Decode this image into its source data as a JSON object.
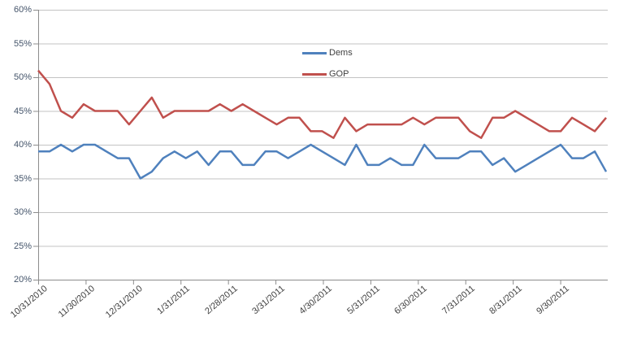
{
  "chart_data": {
    "type": "line",
    "title": "",
    "x_tick_labels": [
      "10/31/2010",
      "11/30/2010",
      "12/31/2010",
      "1/31/2011",
      "2/28/2011",
      "3/31/2011",
      "4/30/2011",
      "5/31/2011",
      "6/30/2011",
      "7/31/2011",
      "8/31/2011",
      "9/30/2011"
    ],
    "y_tick_labels": [
      "20%",
      "25%",
      "30%",
      "35%",
      "40%",
      "45%",
      "50%",
      "55%",
      "60%"
    ],
    "ylim": [
      20,
      60
    ],
    "y_step": 5,
    "grid": true,
    "legend_position": "inside-top-center",
    "series": [
      {
        "name": "Dems",
        "color": "#4F81BD",
        "values": [
          39,
          39,
          40,
          39,
          40,
          40,
          39,
          38,
          38,
          35,
          36,
          38,
          39,
          38,
          39,
          37,
          39,
          39,
          37,
          37,
          39,
          39,
          38,
          39,
          40,
          39,
          38,
          37,
          40,
          37,
          37,
          38,
          37,
          37,
          40,
          38,
          38,
          38,
          39,
          39,
          37,
          38,
          36,
          37,
          38,
          39,
          40,
          38,
          38,
          39,
          36
        ]
      },
      {
        "name": "GOP",
        "color": "#C0504D",
        "values": [
          51,
          49,
          45,
          44,
          46,
          45,
          45,
          45,
          43,
          45,
          47,
          44,
          45,
          45,
          45,
          45,
          46,
          45,
          46,
          45,
          44,
          43,
          44,
          44,
          42,
          42,
          41,
          44,
          42,
          43,
          43,
          43,
          43,
          44,
          43,
          44,
          44,
          44,
          42,
          41,
          44,
          44,
          45,
          44,
          43,
          42,
          42,
          44,
          43,
          42,
          44
        ]
      }
    ]
  },
  "colors": {
    "background": "#FFFFFF",
    "gridline": "#C3C3C3",
    "axis": "#8C8C8C",
    "y_label_text": "#44546A",
    "x_label_text": "#3F3F3F"
  }
}
